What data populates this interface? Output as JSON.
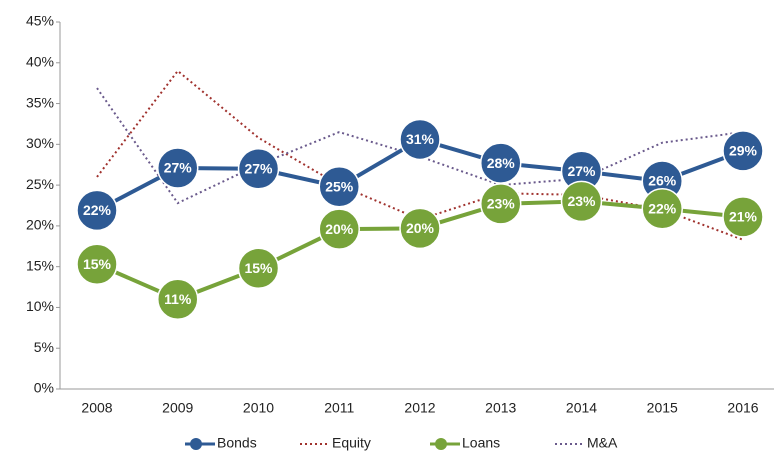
{
  "chart_data": {
    "type": "line",
    "categories": [
      "2008",
      "2009",
      "2010",
      "2011",
      "2012",
      "2013",
      "2014",
      "2015",
      "2016"
    ],
    "series": [
      {
        "name": "Bonds",
        "color": "#2e5a94",
        "style": "solid",
        "markers": true,
        "values": [
          21.9,
          27.1,
          27.0,
          24.8,
          30.6,
          27.7,
          26.7,
          25.5,
          29.2
        ],
        "value_labels": [
          "22%",
          "27%",
          "27%",
          "25%",
          "31%",
          "28%",
          "27%",
          "26%",
          "29%"
        ]
      },
      {
        "name": "Equity",
        "color": "#a0322e",
        "style": "dotted",
        "markers": false,
        "values": [
          26.0,
          39.0,
          30.8,
          25.0,
          20.8,
          24.0,
          23.8,
          22.0,
          18.3
        ]
      },
      {
        "name": "Loans",
        "color": "#77a33a",
        "style": "solid",
        "markers": true,
        "values": [
          15.3,
          11.0,
          14.8,
          19.6,
          19.7,
          22.7,
          23.0,
          22.1,
          21.1
        ],
        "value_labels": [
          "15%",
          "11%",
          "15%",
          "20%",
          "20%",
          "23%",
          "23%",
          "22%",
          "21%"
        ]
      },
      {
        "name": "M&A",
        "color": "#6a5a8c",
        "style": "dotted",
        "markers": false,
        "values": [
          36.9,
          22.8,
          27.5,
          31.5,
          28.5,
          25.0,
          25.8,
          30.2,
          31.5
        ]
      }
    ],
    "ylim": [
      0,
      45
    ],
    "yticks": [
      {
        "value": 0,
        "label": "0%"
      },
      {
        "value": 5,
        "label": "5%"
      },
      {
        "value": 10,
        "label": "10%"
      },
      {
        "value": 15,
        "label": "15%"
      },
      {
        "value": 20,
        "label": "20%"
      },
      {
        "value": 25,
        "label": "25%"
      },
      {
        "value": 30,
        "label": "30%"
      },
      {
        "value": 35,
        "label": "35%"
      },
      {
        "value": 40,
        "label": "40%"
      },
      {
        "value": 45,
        "label": "45%"
      }
    ],
    "legend": "bottom",
    "grid": false
  }
}
